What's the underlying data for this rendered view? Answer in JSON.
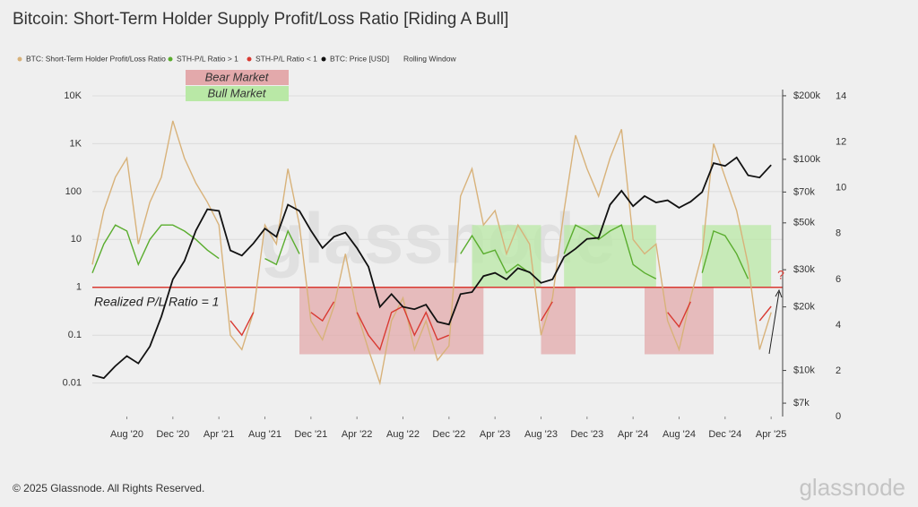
{
  "chart_data": {
    "type": "line",
    "title": "Bitcoin: Short-Term Holder Supply Profit/Loss Ratio [Riding A Bull]",
    "x": [
      "2020-05",
      "2020-06",
      "2020-07",
      "2020-08",
      "2020-09",
      "2020-10",
      "2020-11",
      "2020-12",
      "2021-01",
      "2021-02",
      "2021-03",
      "2021-04",
      "2021-05",
      "2021-06",
      "2021-07",
      "2021-08",
      "2021-09",
      "2021-10",
      "2021-11",
      "2021-12",
      "2022-01",
      "2022-02",
      "2022-03",
      "2022-04",
      "2022-05",
      "2022-06",
      "2022-07",
      "2022-08",
      "2022-09",
      "2022-10",
      "2022-11",
      "2022-12",
      "2023-01",
      "2023-02",
      "2023-03",
      "2023-04",
      "2023-05",
      "2023-06",
      "2023-07",
      "2023-08",
      "2023-09",
      "2023-10",
      "2023-11",
      "2023-12",
      "2024-01",
      "2024-02",
      "2024-03",
      "2024-04",
      "2024-05",
      "2024-06",
      "2024-07",
      "2024-08",
      "2024-09",
      "2024-10",
      "2024-11",
      "2024-12",
      "2025-01",
      "2025-02",
      "2025-03",
      "2025-04"
    ],
    "xlim": [
      "2020-05",
      "2025-05"
    ],
    "xticks": [
      {
        "value": "2020-08",
        "label": "Aug '20"
      },
      {
        "value": "2020-12",
        "label": "Dec '20"
      },
      {
        "value": "2021-04",
        "label": "Apr '21"
      },
      {
        "value": "2021-08",
        "label": "Aug '21"
      },
      {
        "value": "2021-12",
        "label": "Dec '21"
      },
      {
        "value": "2022-04",
        "label": "Apr '22"
      },
      {
        "value": "2022-08",
        "label": "Aug '22"
      },
      {
        "value": "2022-12",
        "label": "Dec '22"
      },
      {
        "value": "2023-04",
        "label": "Apr '23"
      },
      {
        "value": "2023-08",
        "label": "Aug '23"
      },
      {
        "value": "2023-12",
        "label": "Dec '23"
      },
      {
        "value": "2024-04",
        "label": "Apr '24"
      },
      {
        "value": "2024-08",
        "label": "Aug '24"
      },
      {
        "value": "2024-12",
        "label": "Dec '24"
      },
      {
        "value": "2025-04",
        "label": "Apr '25"
      }
    ],
    "ylim": [
      0.002,
      13500
    ],
    "yscale": "log",
    "yticks": [
      0.01,
      0.1,
      1,
      10,
      100,
      {
        "value": 1000,
        "label": "1K"
      },
      {
        "value": 10000,
        "label": "10K"
      }
    ],
    "y2lim": [
      6050,
      214000
    ],
    "y2scale": "log",
    "y2ticks": [
      {
        "value": 7000,
        "label": "$7k"
      },
      {
        "value": 10000,
        "label": "$10k"
      },
      {
        "value": 20000,
        "label": "$20k"
      },
      {
        "value": 30000,
        "label": "$30k"
      },
      {
        "value": 50000,
        "label": "$50k"
      },
      {
        "value": 70000,
        "label": "$70k"
      },
      {
        "value": 100000,
        "label": "$100k"
      },
      {
        "value": 200000,
        "label": "$200k"
      }
    ],
    "y3lim": [
      0,
      14.3
    ],
    "y3ticks": [
      0,
      2,
      4,
      6,
      8,
      10,
      12,
      14
    ],
    "grid": true,
    "series": [
      {
        "name": "BTC: Short-Term Holder Profit/Loss Ratio",
        "color": "#d8b27a",
        "values": [
          3,
          40,
          200,
          500,
          8,
          60,
          200,
          3000,
          500,
          150,
          60,
          20,
          0.1,
          0.05,
          0.3,
          20,
          8,
          300,
          20,
          0.2,
          0.08,
          0.4,
          5,
          0.3,
          0.05,
          0.01,
          0.2,
          0.6,
          0.05,
          0.2,
          0.03,
          0.06,
          80,
          300,
          20,
          40,
          5,
          20,
          8,
          0.1,
          0.6,
          40,
          1500,
          300,
          80,
          500,
          2000,
          10,
          5,
          8,
          0.2,
          0.05,
          0.6,
          5,
          1000,
          200,
          40,
          3,
          0.05,
          0.3
        ]
      },
      {
        "name": "STH-P/L Ratio > 1",
        "color": "#5aad2e",
        "values": [
          2,
          8,
          20,
          15,
          3,
          10,
          20,
          20,
          15,
          10,
          6,
          4,
          null,
          null,
          null,
          4,
          3,
          15,
          5,
          null,
          null,
          null,
          2,
          null,
          null,
          null,
          null,
          null,
          null,
          null,
          null,
          null,
          5,
          12,
          5,
          6,
          2,
          3,
          2,
          null,
          null,
          5,
          20,
          15,
          10,
          15,
          20,
          3,
          2,
          1.5,
          null,
          null,
          null,
          2,
          15,
          12,
          5,
          1.5,
          null,
          null
        ]
      },
      {
        "name": "STH-P/L Ratio < 1",
        "color": "#d93a32",
        "values": [
          null,
          null,
          null,
          null,
          null,
          null,
          null,
          null,
          null,
          null,
          null,
          null,
          0.2,
          0.1,
          0.3,
          null,
          null,
          null,
          null,
          0.3,
          0.2,
          0.5,
          null,
          0.3,
          0.1,
          0.05,
          0.3,
          0.4,
          0.1,
          0.3,
          0.08,
          0.1,
          null,
          null,
          null,
          null,
          null,
          null,
          null,
          0.2,
          0.5,
          null,
          null,
          null,
          null,
          null,
          null,
          null,
          null,
          null,
          0.3,
          0.15,
          0.5,
          null,
          null,
          null,
          null,
          null,
          0.2,
          0.4
        ]
      },
      {
        "name": "BTC: Price [USD]",
        "color": "#111111",
        "axis": "y2",
        "values": [
          9500,
          9200,
          10500,
          11700,
          10800,
          13000,
          18000,
          27000,
          33000,
          46000,
          58000,
          57000,
          37000,
          35000,
          40000,
          47000,
          43000,
          61000,
          57000,
          46000,
          38000,
          43000,
          45000,
          38000,
          31000,
          20000,
          23000,
          20000,
          19500,
          20500,
          17000,
          16500,
          23000,
          23500,
          28000,
          29000,
          27000,
          30500,
          29200,
          26000,
          27000,
          34500,
          37700,
          42000,
          42500,
          61000,
          71000,
          60000,
          67000,
          62500,
          64000,
          59000,
          63000,
          70000,
          96000,
          93000,
          102000,
          84000,
          82000,
          94000
        ]
      }
    ],
    "legend_extra": "Rolling Window",
    "legend": "top-left",
    "reference_line": {
      "value": 1,
      "label": "Realized P/L Ratio = 1",
      "color": "#d93a32"
    },
    "regions": [
      {
        "label": "Bear Market",
        "color": "#e3a9ab",
        "x": [
          "2021-11",
          "2023-03"
        ],
        "y": [
          0.04,
          1
        ]
      },
      {
        "x": [
          "2023-08",
          "2023-11"
        ],
        "y": [
          0.04,
          1
        ]
      },
      {
        "x": [
          "2024-05",
          "2024-11"
        ],
        "y": [
          0.04,
          1
        ]
      },
      {
        "label": "Bull Market",
        "color": "#b9e8a6",
        "x": [
          "2023-02",
          "2023-08"
        ],
        "y": [
          1,
          20
        ]
      },
      {
        "x": [
          "2023-10",
          "2024-06"
        ],
        "y": [
          1,
          20
        ]
      },
      {
        "x": [
          "2024-10",
          "2025-04"
        ],
        "y": [
          1,
          20
        ]
      }
    ],
    "annotation": "?",
    "watermark": "glassnode",
    "footer": "© 2025 Glassnode. All Rights Reserved.",
    "logo": "glassnode"
  }
}
